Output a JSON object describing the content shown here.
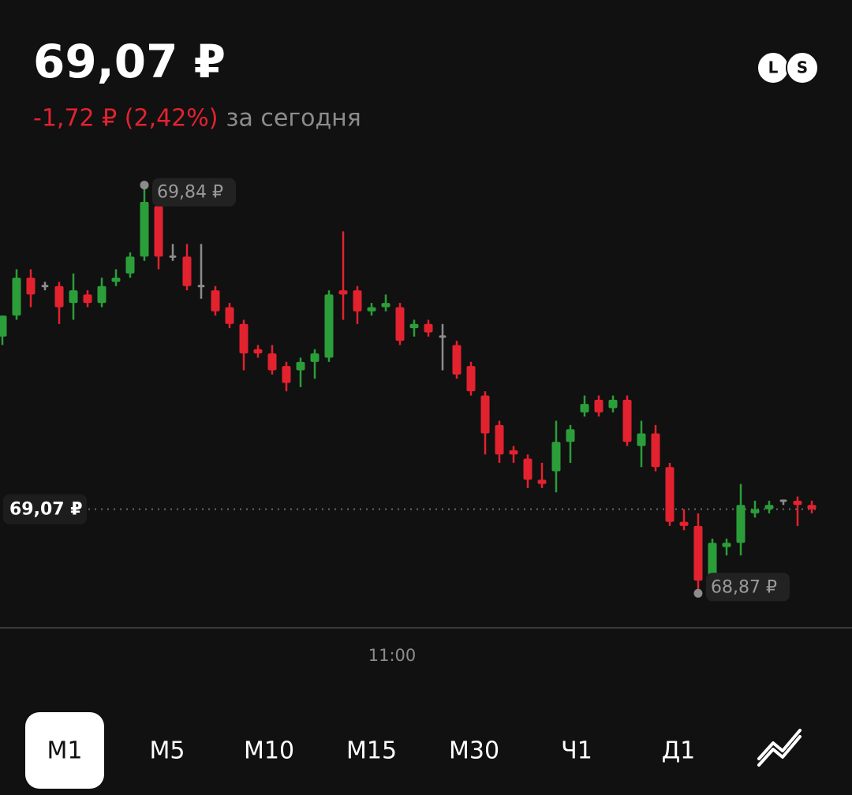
{
  "header": {
    "price": "69,07 ₽",
    "change": "-1,72 ₽ (2,42%)",
    "change_suffix": "за сегодня",
    "badges": [
      "L",
      "S"
    ]
  },
  "chart_data": {
    "type": "candlestick",
    "categories": [
      null,
      null,
      null,
      null,
      null,
      null,
      null,
      null,
      null,
      null,
      null,
      null,
      null,
      null,
      null,
      null,
      null,
      null,
      null,
      null,
      null,
      null,
      null,
      null,
      null,
      null,
      null,
      "11:00",
      null,
      null,
      null,
      null,
      null,
      null,
      null,
      null,
      null,
      null,
      null,
      null,
      null,
      null,
      null,
      null,
      null,
      null,
      null,
      null,
      null,
      null,
      null,
      null,
      null,
      null,
      null,
      null,
      null,
      null
    ],
    "open": [
      69.48,
      69.53,
      69.62,
      69.6,
      69.6,
      69.56,
      69.58,
      69.56,
      69.61,
      69.63,
      69.67,
      69.79,
      69.67,
      69.67,
      69.6,
      69.59,
      69.55,
      69.51,
      69.45,
      69.44,
      69.41,
      69.4,
      69.42,
      69.43,
      69.59,
      69.59,
      69.54,
      69.55,
      69.55,
      69.5,
      69.51,
      69.48,
      69.46,
      69.41,
      69.34,
      69.27,
      69.21,
      69.19,
      69.14,
      69.16,
      69.23,
      69.3,
      69.33,
      69.31,
      69.33,
      69.22,
      69.25,
      69.17,
      69.04,
      69.03,
      68.91,
      68.98,
      68.99,
      69.06,
      69.07,
      69.09,
      69.09,
      69.08
    ],
    "high": [
      69.53,
      69.64,
      69.64,
      69.61,
      69.61,
      69.63,
      69.59,
      69.62,
      69.64,
      69.68,
      69.84,
      69.81,
      69.7,
      69.7,
      69.7,
      69.6,
      69.56,
      69.52,
      69.46,
      69.46,
      69.42,
      69.43,
      69.45,
      69.59,
      69.73,
      69.6,
      69.56,
      69.58,
      69.56,
      69.52,
      69.52,
      69.51,
      69.47,
      69.42,
      69.35,
      69.28,
      69.22,
      69.2,
      69.18,
      69.28,
      69.27,
      69.34,
      69.34,
      69.34,
      69.34,
      69.28,
      69.27,
      69.18,
      69.07,
      69.06,
      69.0,
      69.0,
      69.13,
      69.09,
      69.09,
      69.09,
      69.1,
      69.09
    ],
    "low": [
      69.46,
      69.52,
      69.55,
      69.59,
      69.51,
      69.52,
      69.55,
      69.55,
      69.6,
      69.62,
      69.66,
      69.64,
      69.66,
      69.59,
      69.57,
      69.53,
      69.5,
      69.4,
      69.43,
      69.39,
      69.35,
      69.36,
      69.38,
      69.42,
      69.52,
      69.51,
      69.53,
      69.54,
      69.46,
      69.48,
      69.48,
      69.4,
      69.38,
      69.34,
      69.2,
      69.18,
      69.18,
      69.12,
      69.12,
      69.11,
      69.18,
      69.29,
      69.29,
      69.3,
      69.22,
      69.17,
      69.16,
      69.03,
      69.02,
      68.87,
      68.9,
      68.96,
      68.96,
      69.05,
      69.06,
      69.08,
      69.03,
      69.06
    ],
    "close": [
      69.53,
      69.62,
      69.58,
      69.6,
      69.55,
      69.59,
      69.56,
      69.6,
      69.62,
      69.67,
      69.8,
      69.67,
      69.67,
      69.6,
      69.6,
      69.54,
      69.51,
      69.44,
      69.44,
      69.4,
      69.37,
      69.42,
      69.44,
      69.58,
      69.58,
      69.54,
      69.55,
      69.56,
      69.47,
      69.51,
      69.49,
      69.48,
      69.39,
      69.35,
      69.25,
      69.2,
      69.2,
      69.14,
      69.13,
      69.23,
      69.26,
      69.32,
      69.3,
      69.33,
      69.23,
      69.25,
      69.17,
      69.04,
      69.03,
      68.9,
      68.99,
      68.99,
      69.08,
      69.07,
      69.08,
      69.09,
      69.08,
      69.07
    ],
    "up_color": "#2b9e3a",
    "down_color": "#e3222f",
    "flat_color": "#8c8c8c",
    "ylim": [
      68.79,
      69.92
    ],
    "max_label": {
      "value": 69.84,
      "label": "69,84 ₽"
    },
    "min_label": {
      "value": 68.87,
      "label": "68,87 ₽"
    },
    "last_price": {
      "value": 69.07,
      "label": "69,07 ₽"
    }
  },
  "timeframes": {
    "items": [
      "M1",
      "M5",
      "M10",
      "M15",
      "M30",
      "Ч1",
      "Д1"
    ],
    "selected": "M1"
  }
}
